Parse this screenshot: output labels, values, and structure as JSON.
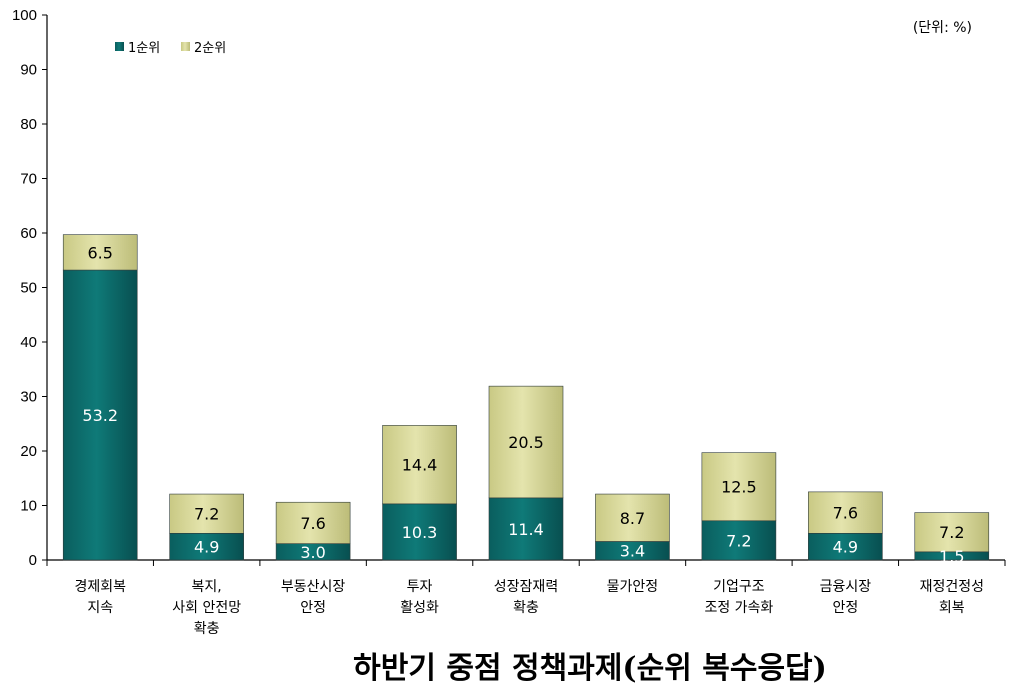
{
  "chart_data": {
    "type": "bar",
    "stacked": true,
    "title": "하반기 중점 정책과제(순위 복수응답)",
    "unit_label": "(단위: %)",
    "ylim": [
      0,
      100
    ],
    "yticks": [
      0,
      10,
      20,
      30,
      40,
      50,
      60,
      70,
      80,
      90,
      100
    ],
    "grid": false,
    "legend_position": "top-left",
    "categories": [
      [
        "경제회복",
        "지속"
      ],
      [
        "복지,",
        "사회 안전망",
        "확충"
      ],
      [
        "부동산시장",
        "안정"
      ],
      [
        "투자",
        "활성화"
      ],
      [
        "성장잠재력",
        "확충"
      ],
      [
        "물가안정"
      ],
      [
        "기업구조",
        "조정 가속화"
      ],
      [
        "금융시장",
        "안정"
      ],
      [
        "재정건정성",
        "회복"
      ]
    ],
    "series": [
      {
        "name": "1순위",
        "color": "#0b6b6b",
        "label_color": "#ffffff",
        "values": [
          53.2,
          4.9,
          3.0,
          10.3,
          11.4,
          3.4,
          7.2,
          4.9,
          1.5
        ]
      },
      {
        "name": "2순위",
        "color": "#d4d494",
        "label_color": "#000000",
        "values": [
          6.5,
          7.2,
          7.6,
          14.4,
          20.5,
          8.7,
          12.5,
          7.6,
          7.2
        ]
      }
    ]
  }
}
